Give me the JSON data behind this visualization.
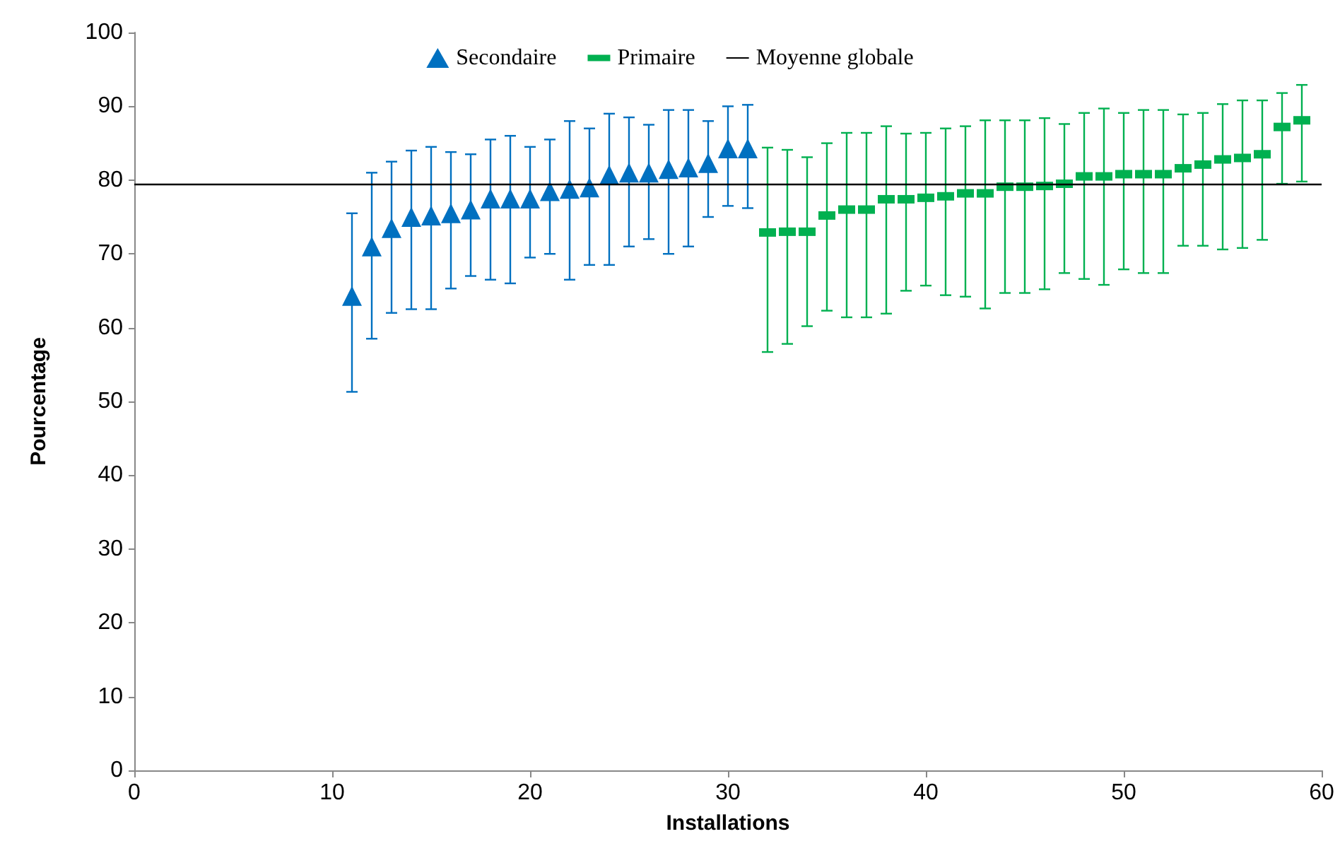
{
  "chart_data": {
    "type": "scatter",
    "xlabel": "Installations",
    "ylabel": "Pourcentage",
    "xlim": [
      0,
      60
    ],
    "xticks": [
      0,
      10,
      20,
      30,
      40,
      50,
      60
    ],
    "ylim": [
      0,
      100
    ],
    "yticks": [
      0,
      10,
      20,
      30,
      40,
      50,
      60,
      70,
      80,
      90,
      100
    ],
    "grid": false,
    "legend": "top",
    "series": [
      {
        "name": "Secondaire",
        "color": "#0070c0",
        "marker": "triangle",
        "x": [
          11,
          12,
          13,
          14,
          15,
          16,
          17,
          18,
          19,
          20,
          21,
          22,
          23,
          24,
          25,
          26,
          27,
          28,
          29,
          30,
          31
        ],
        "values": [
          64.3,
          71,
          73.5,
          75,
          75.2,
          75.5,
          76,
          77.5,
          77.5,
          77.5,
          78.5,
          78.8,
          79,
          80.7,
          81,
          81,
          81.5,
          81.7,
          82.3,
          84.3,
          84.3
        ],
        "errors": [
          [
            51.3,
            75.5
          ],
          [
            58.5,
            81
          ],
          [
            62,
            82.5
          ],
          [
            62.5,
            84
          ],
          [
            62.5,
            84.5
          ],
          [
            65.3,
            83.8
          ],
          [
            67,
            83.5
          ],
          [
            66.5,
            85.5
          ],
          [
            66,
            86
          ],
          [
            69.5,
            84.5
          ],
          [
            70,
            85.5
          ],
          [
            66.5,
            88
          ],
          [
            68.5,
            87
          ],
          [
            68.5,
            89
          ],
          [
            71,
            88.5
          ],
          [
            72,
            87.5
          ],
          [
            70,
            89.5
          ],
          [
            71,
            89.5
          ],
          [
            75,
            88
          ],
          [
            76.5,
            90
          ],
          [
            76.2,
            90.2
          ]
        ]
      },
      {
        "name": "Primaire",
        "color": "#00b050",
        "marker": "square",
        "x": [
          32,
          33,
          34,
          35,
          36,
          37,
          38,
          39,
          40,
          41,
          42,
          43,
          44,
          45,
          46,
          47,
          48,
          49,
          50,
          51,
          52,
          53,
          54,
          55,
          56,
          57,
          58,
          59
        ],
        "values": [
          72.9,
          73,
          73,
          75.2,
          76,
          76,
          77.4,
          77.4,
          77.6,
          77.8,
          78.2,
          78.2,
          79.1,
          79.1,
          79.2,
          79.5,
          80.5,
          80.5,
          80.8,
          80.8,
          80.8,
          81.6,
          82.1,
          82.8,
          83,
          83.5,
          87.2,
          88.1
        ],
        "errors": [
          [
            56.7,
            84.4
          ],
          [
            57.8,
            84.1
          ],
          [
            60.2,
            83.1
          ],
          [
            62.3,
            85
          ],
          [
            61.4,
            86.4
          ],
          [
            61.4,
            86.4
          ],
          [
            61.9,
            87.3
          ],
          [
            65,
            86.3
          ],
          [
            65.7,
            86.4
          ],
          [
            64.4,
            87
          ],
          [
            64.2,
            87.3
          ],
          [
            62.6,
            88.1
          ],
          [
            64.7,
            88.1
          ],
          [
            64.7,
            88.1
          ],
          [
            65.2,
            88.4
          ],
          [
            67.4,
            87.6
          ],
          [
            66.6,
            89.1
          ],
          [
            65.8,
            89.7
          ],
          [
            67.9,
            89.1
          ],
          [
            67.4,
            89.5
          ],
          [
            67.4,
            89.5
          ],
          [
            71.1,
            88.9
          ],
          [
            71.1,
            89.1
          ],
          [
            70.6,
            90.3
          ],
          [
            70.8,
            90.8
          ],
          [
            71.9,
            90.8
          ],
          [
            79.5,
            91.8
          ],
          [
            79.8,
            92.9
          ]
        ]
      }
    ],
    "ref_lines": [
      {
        "axis": "y",
        "value": 79.4,
        "label": "Moyenne globale",
        "color": "#000000"
      }
    ]
  }
}
